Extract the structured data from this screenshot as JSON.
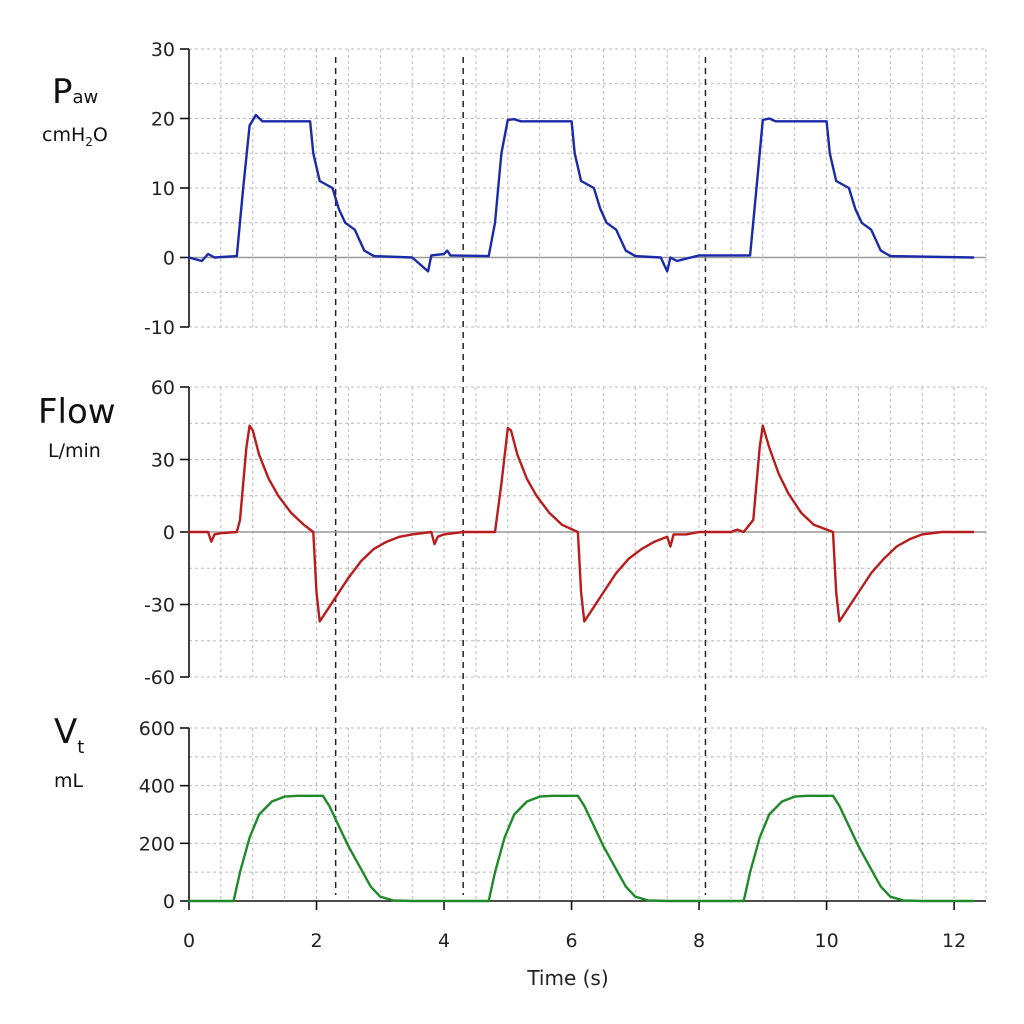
{
  "xlabel": "Time (s)",
  "xticks": [
    "0",
    "2",
    "4",
    "6",
    "8",
    "10",
    "12"
  ],
  "xlim": [
    0,
    12.5
  ],
  "markers": [
    2.3,
    4.3,
    8.1
  ],
  "colors": {
    "pressure": "#1a2aa8",
    "flow": "#b81c1c",
    "volume": "#1f8a2a",
    "zero": "#999999",
    "grid": "#bbbbbb",
    "marker": "#222222"
  },
  "panels": [
    {
      "label_main": "P",
      "label_sub": "aw",
      "unit_pre": "cmH",
      "unit_sub": "2",
      "unit_post": "O",
      "yticks": [
        "30",
        "20",
        "10",
        "0",
        "-10"
      ],
      "ylim": [
        -10,
        30
      ],
      "color_key": "pressure"
    },
    {
      "label_main": "Flow",
      "unit": "L/min",
      "yticks": [
        "60",
        "30",
        "0",
        "-30",
        "-60"
      ],
      "ylim": [
        -60,
        60
      ],
      "color_key": "flow"
    },
    {
      "label_main": "V",
      "label_sub": "t",
      "unit": "mL",
      "yticks": [
        "600",
        "400",
        "200",
        "0"
      ],
      "ylim": [
        0,
        600
      ],
      "color_key": "volume"
    }
  ],
  "chart_data": [
    {
      "type": "line",
      "ylabel": "Paw cmH2O",
      "xlabel": "Time (s)",
      "xlim": [
        0,
        12.5
      ],
      "ylim": [
        -10,
        30
      ],
      "grid": true,
      "series": [
        {
          "values": [
            [
              0,
              0
            ],
            [
              0.2,
              -0.5
            ],
            [
              0.3,
              0.5
            ],
            [
              0.4,
              0
            ],
            [
              0.75,
              0.2
            ],
            [
              0.85,
              10
            ],
            [
              0.95,
              19
            ],
            [
              1.05,
              20.5
            ],
            [
              1.15,
              19.6
            ],
            [
              1.9,
              19.6
            ],
            [
              1.95,
              15
            ],
            [
              2.05,
              11
            ],
            [
              2.25,
              10
            ],
            [
              2.35,
              7
            ],
            [
              2.45,
              5
            ],
            [
              2.6,
              4
            ],
            [
              2.75,
              1
            ],
            [
              2.9,
              0.2
            ],
            [
              3.5,
              0
            ],
            [
              3.75,
              -2
            ],
            [
              3.8,
              0.3
            ],
            [
              4.0,
              0.5
            ],
            [
              4.05,
              1
            ],
            [
              4.1,
              0.3
            ],
            [
              4.7,
              0.2
            ],
            [
              4.8,
              5
            ],
            [
              4.9,
              15
            ],
            [
              5.0,
              19.8
            ],
            [
              5.1,
              19.9
            ],
            [
              5.2,
              19.6
            ],
            [
              6.0,
              19.6
            ],
            [
              6.05,
              15
            ],
            [
              6.15,
              11
            ],
            [
              6.35,
              10
            ],
            [
              6.45,
              7
            ],
            [
              6.55,
              5
            ],
            [
              6.7,
              4
            ],
            [
              6.85,
              1
            ],
            [
              7.0,
              0.2
            ],
            [
              7.4,
              0
            ],
            [
              7.5,
              -2
            ],
            [
              7.55,
              0
            ],
            [
              7.65,
              -0.5
            ],
            [
              8.0,
              0.3
            ],
            [
              8.8,
              0.3
            ],
            [
              8.9,
              10
            ],
            [
              9.0,
              19.8
            ],
            [
              9.1,
              20
            ],
            [
              9.2,
              19.6
            ],
            [
              10.0,
              19.6
            ],
            [
              10.05,
              15
            ],
            [
              10.15,
              11
            ],
            [
              10.35,
              10
            ],
            [
              10.45,
              7
            ],
            [
              10.55,
              5
            ],
            [
              10.7,
              4
            ],
            [
              10.85,
              1
            ],
            [
              11.0,
              0.2
            ],
            [
              12.3,
              0
            ]
          ]
        }
      ]
    },
    {
      "type": "line",
      "ylabel": "Flow L/min",
      "xlabel": "Time (s)",
      "xlim": [
        0,
        12.5
      ],
      "ylim": [
        -60,
        60
      ],
      "grid": true,
      "series": [
        {
          "values": [
            [
              0,
              0
            ],
            [
              0.3,
              0
            ],
            [
              0.35,
              -4
            ],
            [
              0.4,
              -1
            ],
            [
              0.5,
              -0.5
            ],
            [
              0.75,
              0
            ],
            [
              0.8,
              5
            ],
            [
              0.9,
              35
            ],
            [
              0.95,
              44
            ],
            [
              1.0,
              42
            ],
            [
              1.1,
              32
            ],
            [
              1.25,
              22
            ],
            [
              1.4,
              15
            ],
            [
              1.6,
              8
            ],
            [
              1.8,
              3
            ],
            [
              1.95,
              0
            ],
            [
              2.0,
              -25
            ],
            [
              2.05,
              -37
            ],
            [
              2.15,
              -33
            ],
            [
              2.3,
              -27
            ],
            [
              2.5,
              -19
            ],
            [
              2.7,
              -12
            ],
            [
              2.9,
              -7
            ],
            [
              3.1,
              -4
            ],
            [
              3.3,
              -2
            ],
            [
              3.5,
              -1
            ],
            [
              3.8,
              0
            ],
            [
              3.85,
              -5
            ],
            [
              3.9,
              -2
            ],
            [
              4.0,
              -1
            ],
            [
              4.3,
              0
            ],
            [
              4.8,
              0
            ],
            [
              4.9,
              20
            ],
            [
              5.0,
              43
            ],
            [
              5.05,
              42
            ],
            [
              5.15,
              32
            ],
            [
              5.3,
              22
            ],
            [
              5.45,
              15
            ],
            [
              5.65,
              8
            ],
            [
              5.85,
              3
            ],
            [
              6.1,
              0
            ],
            [
              6.15,
              -25
            ],
            [
              6.2,
              -37
            ],
            [
              6.3,
              -33
            ],
            [
              6.5,
              -25
            ],
            [
              6.7,
              -17
            ],
            [
              6.9,
              -11
            ],
            [
              7.1,
              -7
            ],
            [
              7.3,
              -4
            ],
            [
              7.5,
              -2
            ],
            [
              7.55,
              -6
            ],
            [
              7.6,
              -1
            ],
            [
              7.8,
              -1
            ],
            [
              8.0,
              0
            ],
            [
              8.5,
              0
            ],
            [
              8.6,
              1
            ],
            [
              8.7,
              0
            ],
            [
              8.85,
              5
            ],
            [
              8.95,
              35
            ],
            [
              9.0,
              44
            ],
            [
              9.1,
              35
            ],
            [
              9.25,
              24
            ],
            [
              9.4,
              16
            ],
            [
              9.6,
              8
            ],
            [
              9.8,
              3
            ],
            [
              10.1,
              0
            ],
            [
              10.15,
              -25
            ],
            [
              10.2,
              -37
            ],
            [
              10.3,
              -33
            ],
            [
              10.5,
              -25
            ],
            [
              10.7,
              -17
            ],
            [
              10.9,
              -11
            ],
            [
              11.1,
              -6
            ],
            [
              11.3,
              -3
            ],
            [
              11.5,
              -1
            ],
            [
              11.8,
              0
            ],
            [
              12.3,
              0
            ]
          ]
        }
      ]
    },
    {
      "type": "line",
      "ylabel": "Vt mL",
      "xlabel": "Time (s)",
      "xlim": [
        0,
        12.5
      ],
      "ylim": [
        0,
        600
      ],
      "grid": true,
      "series": [
        {
          "values": [
            [
              0,
              0
            ],
            [
              0.7,
              0
            ],
            [
              0.8,
              100
            ],
            [
              0.95,
              220
            ],
            [
              1.1,
              300
            ],
            [
              1.3,
              345
            ],
            [
              1.5,
              362
            ],
            [
              1.7,
              365
            ],
            [
              2.1,
              365
            ],
            [
              2.2,
              330
            ],
            [
              2.35,
              260
            ],
            [
              2.5,
              190
            ],
            [
              2.7,
              110
            ],
            [
              2.85,
              50
            ],
            [
              3.0,
              15
            ],
            [
              3.2,
              2
            ],
            [
              3.5,
              0
            ],
            [
              4.7,
              0
            ],
            [
              4.8,
              100
            ],
            [
              4.95,
              220
            ],
            [
              5.1,
              300
            ],
            [
              5.3,
              345
            ],
            [
              5.5,
              362
            ],
            [
              5.7,
              365
            ],
            [
              6.1,
              365
            ],
            [
              6.2,
              330
            ],
            [
              6.35,
              260
            ],
            [
              6.5,
              190
            ],
            [
              6.7,
              110
            ],
            [
              6.85,
              50
            ],
            [
              7.0,
              15
            ],
            [
              7.2,
              2
            ],
            [
              7.5,
              0
            ],
            [
              8.7,
              0
            ],
            [
              8.8,
              100
            ],
            [
              8.95,
              220
            ],
            [
              9.1,
              300
            ],
            [
              9.3,
              345
            ],
            [
              9.5,
              362
            ],
            [
              9.7,
              365
            ],
            [
              10.1,
              365
            ],
            [
              10.2,
              330
            ],
            [
              10.35,
              260
            ],
            [
              10.5,
              190
            ],
            [
              10.7,
              110
            ],
            [
              10.85,
              50
            ],
            [
              11.0,
              15
            ],
            [
              11.2,
              2
            ],
            [
              11.5,
              0
            ],
            [
              12.3,
              0
            ]
          ]
        }
      ]
    }
  ]
}
